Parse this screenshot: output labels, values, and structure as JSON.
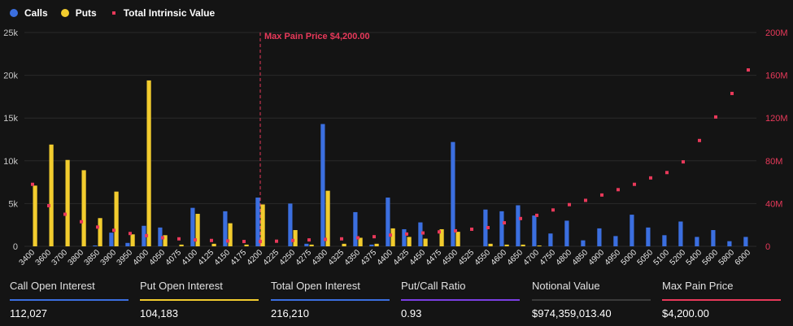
{
  "legend": {
    "calls_label": "Calls",
    "puts_label": "Puts",
    "tiv_label": "Total Intrinsic Value"
  },
  "colors": {
    "calls": "#3b6fe0",
    "puts": "#f2cc2e",
    "tiv": "#e8395a",
    "background": "#141414",
    "grid": "#2a2a2a",
    "axis_left": "#c8c8c8",
    "axis_right": "#e8395a"
  },
  "chart_data": {
    "type": "bar",
    "categories": [
      "3400",
      "3600",
      "3700",
      "3800",
      "3850",
      "3900",
      "3950",
      "4000",
      "4050",
      "4075",
      "4100",
      "4125",
      "4150",
      "4175",
      "4200",
      "4225",
      "4250",
      "4275",
      "4300",
      "4325",
      "4350",
      "4375",
      "4400",
      "4425",
      "4450",
      "4475",
      "4500",
      "4525",
      "4550",
      "4600",
      "4650",
      "4700",
      "4750",
      "4800",
      "4850",
      "4900",
      "4950",
      "5000",
      "5050",
      "5100",
      "5200",
      "5400",
      "5600",
      "5800",
      "6000"
    ],
    "series": [
      {
        "name": "Calls",
        "axis": "left",
        "kind": "bar",
        "values": [
          0,
          0,
          0,
          0,
          100,
          1600,
          400,
          2400,
          2200,
          0,
          4500,
          0,
          4100,
          0,
          5700,
          0,
          5000,
          300,
          14300,
          0,
          4000,
          200,
          5700,
          2000,
          2800,
          0,
          12200,
          0,
          4300,
          4100,
          4800,
          3600,
          1500,
          3000,
          700,
          2100,
          1200,
          3700,
          2200,
          1300,
          2900,
          1100,
          1900,
          600,
          1100
        ]
      },
      {
        "name": "Puts",
        "axis": "left",
        "kind": "bar",
        "values": [
          7100,
          11900,
          10100,
          8900,
          3300,
          6400,
          1400,
          19400,
          1300,
          200,
          3800,
          300,
          2700,
          200,
          4900,
          0,
          1900,
          200,
          6500,
          300,
          1000,
          300,
          2100,
          1100,
          900,
          2000,
          1700,
          0,
          300,
          200,
          200,
          100,
          0,
          0,
          0,
          0,
          0,
          0,
          0,
          0,
          0,
          0,
          0,
          0,
          0
        ]
      },
      {
        "name": "Total Intrinsic Value",
        "axis": "right",
        "kind": "scatter",
        "values": [
          58,
          38,
          30,
          23,
          18,
          15,
          12,
          10,
          8,
          7,
          6,
          5.5,
          5,
          4.5,
          4.5,
          4.8,
          5.5,
          6,
          6.5,
          7,
          8,
          9,
          10.5,
          11.5,
          12.5,
          13.5,
          14.5,
          16,
          17.5,
          22,
          26,
          29,
          34,
          39,
          43,
          48,
          53,
          58,
          64,
          69,
          79,
          99,
          121,
          143,
          165
        ]
      }
    ],
    "ylim_left": [
      0,
      25000
    ],
    "yticks_left": [
      "0",
      "5k",
      "10k",
      "15k",
      "20k",
      "25k"
    ],
    "ylim_right": [
      0,
      200
    ],
    "yticks_right": [
      "0",
      "40M",
      "80M",
      "120M",
      "160M",
      "200M"
    ],
    "annotation": {
      "category": "4200",
      "label": "Max Pain Price $4,200.00"
    },
    "grid": true,
    "legend_position": "top-left"
  },
  "stats": [
    {
      "label": "Call Open Interest",
      "value": "112,027",
      "color": "#3b6fe0"
    },
    {
      "label": "Put Open Interest",
      "value": "104,183",
      "color": "#f2cc2e"
    },
    {
      "label": "Total Open Interest",
      "value": "216,210",
      "color": "#3b6fe0"
    },
    {
      "label": "Put/Call Ratio",
      "value": "0.93",
      "color": "#7b3fe4"
    },
    {
      "label": "Notional Value",
      "value": "$974,359,013.40",
      "color": "#3a3a3a"
    },
    {
      "label": "Max Pain Price",
      "value": "$4,200.00",
      "color": "#e8395a"
    }
  ]
}
